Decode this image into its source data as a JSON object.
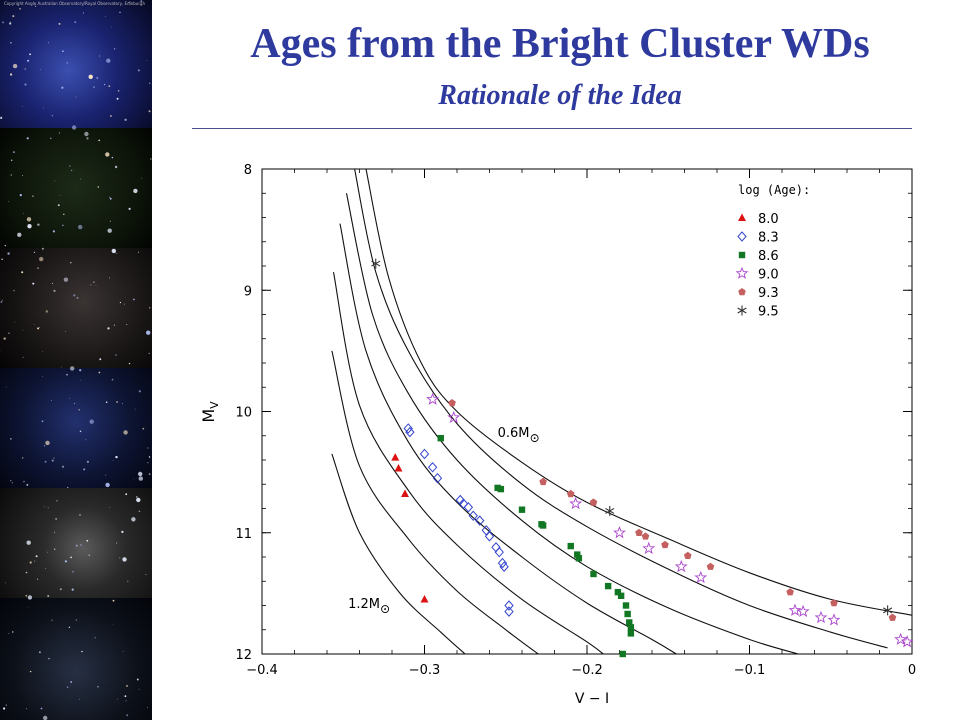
{
  "slide": {
    "title": "Ages from the Bright Cluster WDs",
    "subtitle": "Rationale of the Idea",
    "photo_credit": "Copyright Anglo Australian Observatory/Royal Observatory, Edinburgh"
  },
  "colors": {
    "title": "#2f3a9e",
    "age_8_0": "#dd1111",
    "age_8_3": "#3344cc",
    "age_8_6": "#117722",
    "age_9_0": "#aa44cc",
    "age_9_3": "#c46060",
    "age_9_5": "#333333"
  },
  "chart_data": {
    "type": "scatter",
    "xlabel": "V − I",
    "ylabel_main": "M",
    "ylabel_sub": "V",
    "xlim": [
      -0.4,
      0
    ],
    "ylim": [
      8,
      12
    ],
    "y_inverted": true,
    "xticks": [
      "−0.4",
      "−0.3",
      "−0.2",
      "−0.1",
      "0"
    ],
    "yticks": [
      "8",
      "9",
      "10",
      "11",
      "12"
    ],
    "legend_title": "log (Age):",
    "legend_position": "top-right",
    "curve_labels": [
      {
        "text": "0.6M",
        "x": -0.255,
        "y": 10.17
      },
      {
        "text": "1.2M",
        "x": -0.347,
        "y": 11.58
      }
    ],
    "cooling_curves": [
      [
        [
          -0.336,
          8.0
        ],
        [
          -0.322,
          8.9
        ],
        [
          -0.302,
          9.6
        ],
        [
          -0.28,
          10.0
        ],
        [
          -0.24,
          10.42
        ],
        [
          -0.2,
          10.75
        ],
        [
          -0.15,
          11.05
        ],
        [
          -0.1,
          11.33
        ],
        [
          -0.05,
          11.55
        ],
        [
          0,
          11.68
        ]
      ],
      [
        [
          -0.343,
          8.0
        ],
        [
          -0.33,
          8.85
        ],
        [
          -0.31,
          9.5
        ],
        [
          -0.28,
          10.1
        ],
        [
          -0.24,
          10.6
        ],
        [
          -0.2,
          10.95
        ],
        [
          -0.15,
          11.3
        ],
        [
          -0.1,
          11.6
        ],
        [
          -0.05,
          11.82
        ],
        [
          -0.015,
          11.95
        ]
      ],
      [
        [
          -0.348,
          8.2
        ],
        [
          -0.332,
          9.2
        ],
        [
          -0.31,
          9.85
        ],
        [
          -0.28,
          10.4
        ],
        [
          -0.24,
          10.9
        ],
        [
          -0.2,
          11.28
        ],
        [
          -0.15,
          11.62
        ],
        [
          -0.1,
          11.88
        ],
        [
          -0.07,
          12.0
        ]
      ],
      [
        [
          -0.352,
          8.45
        ],
        [
          -0.336,
          9.5
        ],
        [
          -0.31,
          10.25
        ],
        [
          -0.28,
          10.75
        ],
        [
          -0.24,
          11.2
        ],
        [
          -0.2,
          11.58
        ],
        [
          -0.16,
          11.88
        ],
        [
          -0.145,
          12.0
        ]
      ],
      [
        [
          -0.356,
          8.85
        ],
        [
          -0.34,
          9.95
        ],
        [
          -0.31,
          10.65
        ],
        [
          -0.28,
          11.1
        ],
        [
          -0.24,
          11.55
        ],
        [
          -0.2,
          11.9
        ],
        [
          -0.19,
          12.0
        ]
      ],
      [
        [
          -0.357,
          9.5
        ],
        [
          -0.34,
          10.45
        ],
        [
          -0.31,
          11.05
        ],
        [
          -0.28,
          11.48
        ],
        [
          -0.25,
          11.8
        ],
        [
          -0.23,
          12.0
        ]
      ],
      [
        [
          -0.357,
          10.35
        ],
        [
          -0.34,
          11.0
        ],
        [
          -0.315,
          11.5
        ],
        [
          -0.29,
          11.82
        ],
        [
          -0.275,
          12.0
        ]
      ]
    ],
    "series": [
      {
        "name": "8.0",
        "marker": "triangle",
        "points": [
          [
            -0.318,
            10.38
          ],
          [
            -0.316,
            10.47
          ],
          [
            -0.312,
            10.68
          ],
          [
            -0.3,
            11.55
          ]
        ]
      },
      {
        "name": "8.3",
        "marker": "diamond",
        "points": [
          [
            -0.31,
            10.14
          ],
          [
            -0.309,
            10.17
          ],
          [
            -0.3,
            10.35
          ],
          [
            -0.295,
            10.46
          ],
          [
            -0.292,
            10.55
          ],
          [
            -0.278,
            10.73
          ],
          [
            -0.276,
            10.76
          ],
          [
            -0.273,
            10.79
          ],
          [
            -0.27,
            10.86
          ],
          [
            -0.266,
            10.9
          ],
          [
            -0.262,
            10.98
          ],
          [
            -0.26,
            11.03
          ],
          [
            -0.256,
            11.12
          ],
          [
            -0.254,
            11.16
          ],
          [
            -0.252,
            11.25
          ],
          [
            -0.251,
            11.28
          ],
          [
            -0.248,
            11.6
          ],
          [
            -0.248,
            11.65
          ]
        ]
      },
      {
        "name": "8.6",
        "marker": "square",
        "points": [
          [
            -0.29,
            10.22
          ],
          [
            -0.255,
            10.63
          ],
          [
            -0.253,
            10.64
          ],
          [
            -0.24,
            10.81
          ],
          [
            -0.228,
            10.93
          ],
          [
            -0.227,
            10.94
          ],
          [
            -0.21,
            11.11
          ],
          [
            -0.206,
            11.18
          ],
          [
            -0.205,
            11.21
          ],
          [
            -0.196,
            11.34
          ],
          [
            -0.187,
            11.44
          ],
          [
            -0.181,
            11.49
          ],
          [
            -0.179,
            11.52
          ],
          [
            -0.176,
            11.6
          ],
          [
            -0.175,
            11.67
          ],
          [
            -0.174,
            11.74
          ],
          [
            -0.173,
            11.78
          ],
          [
            -0.173,
            11.83
          ],
          [
            -0.178,
            12.0
          ]
        ]
      },
      {
        "name": "9.0",
        "marker": "star",
        "points": [
          [
            -0.295,
            9.9
          ],
          [
            -0.282,
            10.05
          ],
          [
            -0.207,
            10.76
          ],
          [
            -0.18,
            11.0
          ],
          [
            -0.162,
            11.13
          ],
          [
            -0.142,
            11.28
          ],
          [
            -0.13,
            11.37
          ],
          [
            -0.072,
            11.64
          ],
          [
            -0.067,
            11.65
          ],
          [
            -0.056,
            11.7
          ],
          [
            -0.048,
            11.72
          ],
          [
            -0.007,
            11.88
          ],
          [
            -0.003,
            11.9
          ]
        ]
      },
      {
        "name": "9.3",
        "marker": "pentagon",
        "points": [
          [
            -0.283,
            9.93
          ],
          [
            -0.227,
            10.58
          ],
          [
            -0.21,
            10.68
          ],
          [
            -0.196,
            10.75
          ],
          [
            -0.168,
            11.0
          ],
          [
            -0.164,
            11.03
          ],
          [
            -0.152,
            11.1
          ],
          [
            -0.138,
            11.19
          ],
          [
            -0.124,
            11.28
          ],
          [
            -0.075,
            11.49
          ],
          [
            -0.048,
            11.58
          ],
          [
            -0.012,
            11.7
          ]
        ]
      },
      {
        "name": "9.5",
        "marker": "asterisk",
        "points": [
          [
            -0.33,
            8.78
          ],
          [
            -0.186,
            10.82
          ],
          [
            -0.015,
            11.64
          ]
        ]
      }
    ]
  }
}
